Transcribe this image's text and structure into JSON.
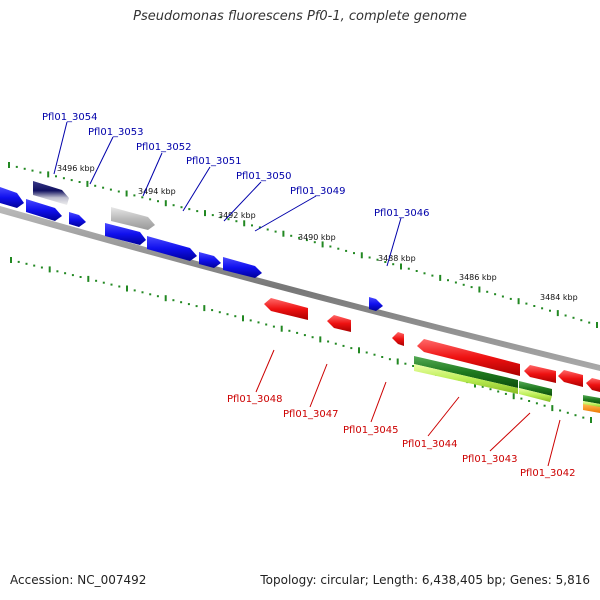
{
  "title": "Pseudomonas fluorescens Pf0-1, complete genome",
  "footer": {
    "accession": "Accession: NC_007492",
    "summary": "Topology: circular; Length: 6,438,405 bp; Genes: 5,816"
  },
  "colors": {
    "forward": "#1010ee",
    "reverse": "#ee1111",
    "backbone": "#888888",
    "tick": "#228822",
    "label_forward": "#0000aa",
    "label_reverse": "#cc0000"
  },
  "kbp_labels": [
    {
      "id": "3496",
      "text": "3496 kbp"
    },
    {
      "id": "3494",
      "text": "3494 kbp"
    },
    {
      "id": "3492",
      "text": "3492 kbp"
    },
    {
      "id": "3490",
      "text": "3490 kbp"
    },
    {
      "id": "3488",
      "text": "3488 kbp"
    },
    {
      "id": "3486",
      "text": "3486 kbp"
    },
    {
      "id": "3484",
      "text": "3484 kbp"
    }
  ],
  "forward_labels": [
    {
      "id": "3054",
      "text": "Pfl01_3054"
    },
    {
      "id": "3053",
      "text": "Pfl01_3053"
    },
    {
      "id": "3052",
      "text": "Pfl01_3052"
    },
    {
      "id": "3051",
      "text": "Pfl01_3051"
    },
    {
      "id": "3050",
      "text": "Pfl01_3050"
    },
    {
      "id": "3049",
      "text": "Pfl01_3049"
    },
    {
      "id": "3046",
      "text": "Pfl01_3046"
    }
  ],
  "reverse_labels": [
    {
      "id": "3048",
      "text": "Pfl01_3048"
    },
    {
      "id": "3047",
      "text": "Pfl01_3047"
    },
    {
      "id": "3045",
      "text": "Pfl01_3045"
    },
    {
      "id": "3044",
      "text": "Pfl01_3044"
    },
    {
      "id": "3043",
      "text": "Pfl01_3043"
    },
    {
      "id": "3042",
      "text": "Pfl01_3042"
    }
  ]
}
